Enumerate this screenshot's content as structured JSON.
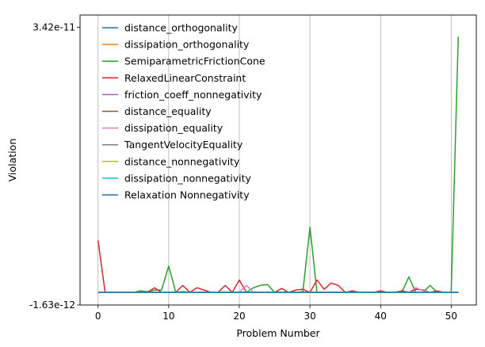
{
  "chart_data": {
    "type": "line",
    "title": "",
    "xlabel": "Problem Number",
    "ylabel": "Violation",
    "xlim": [
      -2.55,
      53.55
    ],
    "ylim": [
      -1.63e-12,
      3.42e-11
    ],
    "xticks": [
      0,
      10,
      20,
      30,
      40,
      50
    ],
    "xtick_labels": [
      "0",
      "10",
      "20",
      "30",
      "40",
      "50"
    ],
    "yticks": [
      -1.63e-12,
      3.42e-11
    ],
    "ytick_labels": [
      "-1.63e-12",
      "3.42e-11"
    ],
    "grid": "vertical at x ticks",
    "legend_position": "upper-left",
    "series": [
      {
        "name": "distance_orthogonality",
        "color": "#1f77b4",
        "values": [
          0,
          0,
          0,
          0,
          0,
          0,
          0,
          0,
          0,
          0,
          0,
          0,
          0,
          0,
          0,
          0,
          0,
          0,
          0,
          0,
          0,
          0,
          0,
          0,
          0,
          0,
          0,
          0,
          0,
          0,
          0,
          0,
          0,
          0,
          0,
          0,
          0,
          0,
          0,
          0,
          0,
          0,
          0,
          0,
          0,
          0,
          0,
          0,
          0,
          0,
          0,
          0
        ]
      },
      {
        "name": "dissipation_orthogonality",
        "color": "#ff7f0e",
        "values": [
          0,
          0,
          0,
          0,
          0,
          0,
          0,
          0,
          0,
          0,
          0,
          0,
          0,
          0,
          0,
          0,
          0,
          0,
          0,
          0,
          0,
          0,
          0,
          0,
          0,
          0,
          0,
          0,
          0,
          0,
          0,
          0,
          0,
          0,
          0,
          0,
          0,
          0,
          0,
          0,
          0,
          0,
          0,
          0,
          0,
          0,
          0,
          0,
          0,
          0,
          0,
          0
        ]
      },
      {
        "name": "SemiparametricFrictionCone",
        "color": "#2ca02c",
        "values": [
          0,
          0,
          0,
          0,
          0,
          0,
          2e-13,
          1e-13,
          3e-13,
          3e-13,
          3.4e-12,
          0,
          1e-13,
          0,
          0,
          0,
          0,
          0,
          0,
          0,
          0,
          0,
          6e-13,
          9e-13,
          1e-12,
          0,
          0,
          0,
          0,
          1e-13,
          8.4e-12,
          0,
          0,
          0,
          0,
          0,
          0,
          0,
          0,
          0,
          0,
          0,
          0,
          0,
          2e-12,
          0,
          0,
          9e-13,
          0,
          0,
          0,
          3.3e-11
        ]
      },
      {
        "name": "RelaxedLinearConstraint",
        "color": "#d62728",
        "values": [
          6.7e-12,
          0,
          0,
          0,
          0,
          0,
          0,
          0,
          6e-13,
          0,
          0,
          0,
          9e-13,
          0,
          6e-13,
          3e-13,
          0,
          0,
          9e-13,
          0,
          1.6e-12,
          0,
          0,
          0,
          0,
          0,
          5e-13,
          0,
          3e-13,
          4e-13,
          0,
          1.6e-12,
          4e-13,
          1.2e-12,
          9e-13,
          0,
          2e-13,
          0,
          0,
          0,
          2e-13,
          0,
          0,
          2e-13,
          0,
          4e-13,
          3e-13,
          0,
          2e-13,
          0,
          0,
          0
        ]
      },
      {
        "name": "friction_coeff_nonnegativity",
        "color": "#9467bd",
        "values": [
          0,
          0,
          0,
          0,
          0,
          0,
          0,
          0,
          0,
          0,
          0,
          0,
          0,
          0,
          0,
          0,
          0,
          0,
          0,
          0,
          0,
          0,
          0,
          0,
          0,
          0,
          0,
          0,
          0,
          0,
          0,
          0,
          0,
          0,
          0,
          0,
          0,
          0,
          0,
          0,
          0,
          0,
          0,
          0,
          0,
          0,
          0,
          0,
          0,
          0,
          0,
          0
        ]
      },
      {
        "name": "distance_equality",
        "color": "#8c564b",
        "values": [
          0,
          0,
          0,
          0,
          0,
          0,
          0,
          0,
          0,
          0,
          0,
          0,
          0,
          0,
          0,
          0,
          0,
          0,
          0,
          0,
          0,
          0,
          0,
          0,
          0,
          0,
          0,
          0,
          0,
          0,
          0,
          0,
          0,
          0,
          0,
          0,
          0,
          0,
          0,
          0,
          0,
          0,
          0,
          0,
          0,
          0,
          0,
          0,
          0,
          0,
          0,
          0
        ]
      },
      {
        "name": "dissipation_equality",
        "color": "#e377c2",
        "values": [
          0,
          0,
          0,
          0,
          0,
          0,
          0,
          0,
          0,
          0,
          0,
          0,
          0,
          0,
          0,
          0,
          0,
          0,
          0,
          0,
          0,
          9e-13,
          0,
          0,
          0,
          0,
          0,
          0,
          0,
          0,
          0,
          0,
          0,
          0,
          0,
          0,
          0,
          0,
          0,
          0,
          0,
          0,
          0,
          0,
          0,
          6e-13,
          2e-13,
          0,
          0,
          0,
          0,
          0
        ]
      },
      {
        "name": "TangentVelocityEquality",
        "color": "#7f7f7f",
        "values": [
          0,
          0,
          0,
          0,
          0,
          0,
          0,
          0,
          0,
          0,
          0,
          0,
          0,
          0,
          0,
          0,
          0,
          0,
          0,
          0,
          0,
          0,
          0,
          0,
          0,
          0,
          0,
          0,
          0,
          0,
          0,
          0,
          0,
          0,
          0,
          0,
          0,
          0,
          0,
          0,
          0,
          0,
          0,
          0,
          0,
          0,
          0,
          0,
          0,
          0,
          0,
          0
        ]
      },
      {
        "name": "distance_nonnegativity",
        "color": "#bcbd22",
        "values": [
          0,
          0,
          0,
          0,
          0,
          0,
          0,
          0,
          0,
          0,
          0,
          0,
          0,
          0,
          0,
          0,
          0,
          0,
          0,
          0,
          0,
          0,
          0,
          0,
          0,
          0,
          0,
          0,
          0,
          0,
          0,
          0,
          0,
          0,
          0,
          0,
          0,
          0,
          0,
          0,
          0,
          0,
          0,
          0,
          0,
          0,
          0,
          0,
          0,
          0,
          0,
          0
        ]
      },
      {
        "name": "dissipation_nonnegativity",
        "color": "#17becf",
        "values": [
          0,
          0,
          0,
          0,
          0,
          0,
          0,
          0,
          0,
          0,
          0,
          0,
          0,
          0,
          0,
          0,
          0,
          0,
          0,
          0,
          0,
          0,
          0,
          0,
          0,
          0,
          0,
          0,
          0,
          0,
          0,
          0,
          0,
          0,
          0,
          0,
          0,
          0,
          0,
          0,
          0,
          0,
          0,
          0,
          0,
          0,
          0,
          0,
          0,
          0,
          0,
          0
        ]
      },
      {
        "name": "Relaxation Nonnegativity",
        "color": "#1f77b4",
        "values": [
          0,
          0,
          0,
          0,
          0,
          0,
          0,
          0,
          0,
          0,
          0,
          0,
          0,
          0,
          0,
          0,
          0,
          0,
          0,
          0,
          0,
          0,
          0,
          0,
          0,
          0,
          0,
          0,
          0,
          0,
          0,
          0,
          0,
          0,
          0,
          0,
          0,
          0,
          0,
          0,
          0,
          0,
          0,
          0,
          0,
          0,
          0,
          0,
          0,
          0,
          0,
          0
        ]
      }
    ]
  }
}
